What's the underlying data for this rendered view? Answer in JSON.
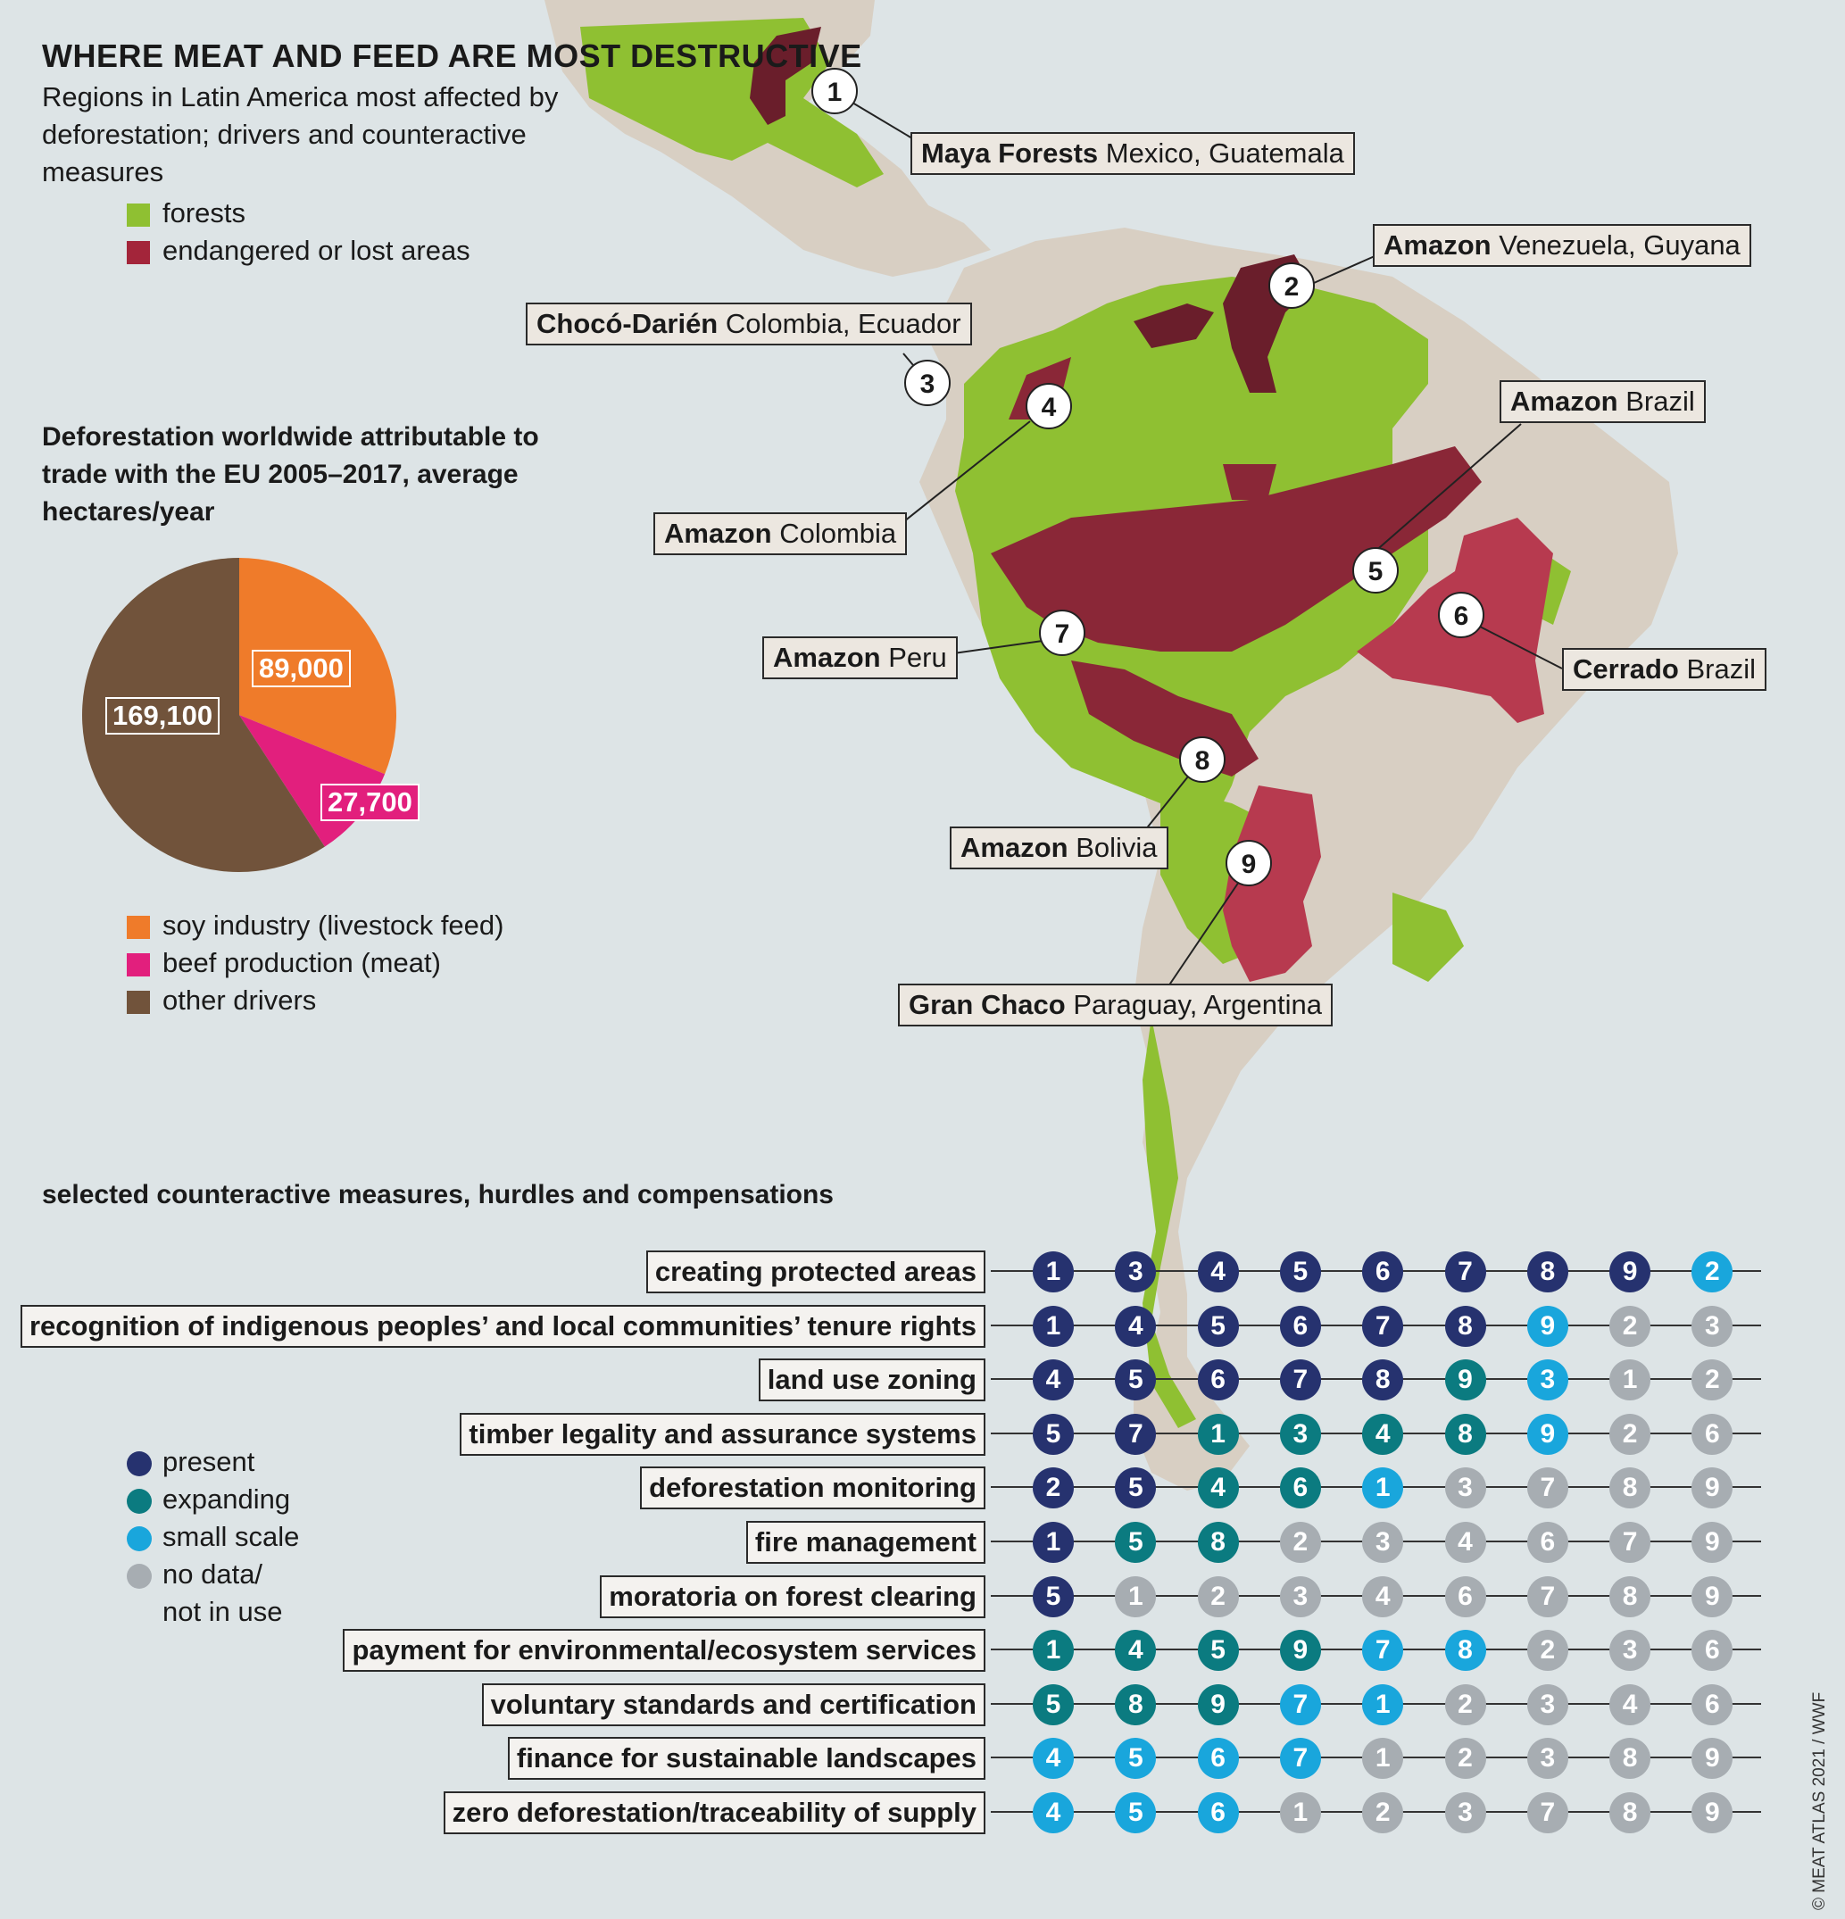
{
  "title": "WHERE MEAT AND FEED ARE MOST DESTRUCTIVE",
  "subtitle": "Regions in Latin America most affected by deforestation; drivers and counteractive measures",
  "colors": {
    "ocean": "#dde4e6",
    "land": "#d8cfc3",
    "forest": "#8fc032",
    "endangered": "#b73a4f",
    "dark_endangered": "#6a1e2b",
    "soy": "#ef7b2a",
    "beef": "#e21f7d",
    "other": "#71533b",
    "present": "#26326f",
    "expanding": "#0b7b80",
    "small_scale": "#19a6dc",
    "no_data": "#a7adb2"
  },
  "map_legend": [
    {
      "label": "forests",
      "color": "#8fc032"
    },
    {
      "label": "endangered or lost areas",
      "color": "#a3253a"
    }
  ],
  "pie": {
    "title": "Deforestation worldwide attributable to trade with the EU 2005–2017, average hectares/year",
    "legend": [
      {
        "label": "soy industry (livestock feed)",
        "color": "#ef7b2a"
      },
      {
        "label": "beef production (meat)",
        "color": "#e21f7d"
      },
      {
        "label": "other drivers",
        "color": "#71533b"
      }
    ]
  },
  "chart_data": {
    "type": "pie",
    "title": "Deforestation worldwide attributable to trade with the EU 2005–2017, average hectares/year",
    "slices": [
      {
        "label": "soy industry (livestock feed)",
        "value": 89000,
        "display": "89,000",
        "color": "#ef7b2a"
      },
      {
        "label": "beef production (meat)",
        "value": 27700,
        "display": "27,700",
        "color": "#e21f7d"
      },
      {
        "label": "other drivers",
        "value": 169100,
        "display": "169,100",
        "color": "#71533b"
      }
    ]
  },
  "regions": [
    {
      "num": "1",
      "name": "Maya Forests",
      "countries": "Mexico, Guatemala"
    },
    {
      "num": "2",
      "name": "Amazon",
      "countries": "Venezuela, Guyana"
    },
    {
      "num": "3",
      "name": "Chocó-Darién",
      "countries": "Colombia, Ecuador"
    },
    {
      "num": "4",
      "name": "Amazon",
      "countries": "Colombia"
    },
    {
      "num": "5",
      "name": "Amazon",
      "countries": "Brazil"
    },
    {
      "num": "6",
      "name": "Cerrado",
      "countries": "Brazil"
    },
    {
      "num": "7",
      "name": "Amazon",
      "countries": "Peru"
    },
    {
      "num": "8",
      "name": "Amazon",
      "countries": "Bolivia"
    },
    {
      "num": "9",
      "name": "Gran Chaco",
      "countries": "Paraguay, Argentina"
    }
  ],
  "measures_title": "selected counteractive measures, hurdles and compensations",
  "status_legend": [
    {
      "key": "present",
      "label": "present",
      "color": "#26326f"
    },
    {
      "key": "expanding",
      "label": "expanding",
      "color": "#0b7b80"
    },
    {
      "key": "small",
      "label": "small scale",
      "color": "#19a6dc"
    },
    {
      "key": "none",
      "label": "no data/ not in use",
      "line1": "no data/",
      "line2": "not in use",
      "color": "#a7adb2"
    }
  ],
  "measures": [
    {
      "label": "creating protected areas",
      "items": [
        [
          "1",
          "present"
        ],
        [
          "3",
          "present"
        ],
        [
          "4",
          "present"
        ],
        [
          "5",
          "present"
        ],
        [
          "6",
          "present"
        ],
        [
          "7",
          "present"
        ],
        [
          "8",
          "present"
        ],
        [
          "9",
          "present"
        ],
        [
          "2",
          "small"
        ]
      ]
    },
    {
      "label": "recognition of indigenous peoples’ and local communities’ tenure rights",
      "items": [
        [
          "1",
          "present"
        ],
        [
          "4",
          "present"
        ],
        [
          "5",
          "present"
        ],
        [
          "6",
          "present"
        ],
        [
          "7",
          "present"
        ],
        [
          "8",
          "present"
        ],
        [
          "9",
          "small"
        ],
        [
          "2",
          "none"
        ],
        [
          "3",
          "none"
        ]
      ]
    },
    {
      "label": "land use zoning",
      "items": [
        [
          "4",
          "present"
        ],
        [
          "5",
          "present"
        ],
        [
          "6",
          "present"
        ],
        [
          "7",
          "present"
        ],
        [
          "8",
          "present"
        ],
        [
          "9",
          "expanding"
        ],
        [
          "3",
          "small"
        ],
        [
          "1",
          "none"
        ],
        [
          "2",
          "none"
        ]
      ]
    },
    {
      "label": "timber legality and assurance systems",
      "items": [
        [
          "5",
          "present"
        ],
        [
          "7",
          "present"
        ],
        [
          "1",
          "expanding"
        ],
        [
          "3",
          "expanding"
        ],
        [
          "4",
          "expanding"
        ],
        [
          "8",
          "expanding"
        ],
        [
          "9",
          "small"
        ],
        [
          "2",
          "none"
        ],
        [
          "6",
          "none"
        ]
      ]
    },
    {
      "label": "deforestation monitoring",
      "items": [
        [
          "2",
          "present"
        ],
        [
          "5",
          "present"
        ],
        [
          "4",
          "expanding"
        ],
        [
          "6",
          "expanding"
        ],
        [
          "1",
          "small"
        ],
        [
          "3",
          "none"
        ],
        [
          "7",
          "none"
        ],
        [
          "8",
          "none"
        ],
        [
          "9",
          "none"
        ]
      ]
    },
    {
      "label": "fire management",
      "items": [
        [
          "1",
          "present"
        ],
        [
          "5",
          "expanding"
        ],
        [
          "8",
          "expanding"
        ],
        [
          "2",
          "none"
        ],
        [
          "3",
          "none"
        ],
        [
          "4",
          "none"
        ],
        [
          "6",
          "none"
        ],
        [
          "7",
          "none"
        ],
        [
          "9",
          "none"
        ]
      ]
    },
    {
      "label": "moratoria on forest clearing",
      "items": [
        [
          "5",
          "present"
        ],
        [
          "1",
          "none"
        ],
        [
          "2",
          "none"
        ],
        [
          "3",
          "none"
        ],
        [
          "4",
          "none"
        ],
        [
          "6",
          "none"
        ],
        [
          "7",
          "none"
        ],
        [
          "8",
          "none"
        ],
        [
          "9",
          "none"
        ]
      ]
    },
    {
      "label": "payment for environmental/ecosystem services",
      "items": [
        [
          "1",
          "expanding"
        ],
        [
          "4",
          "expanding"
        ],
        [
          "5",
          "expanding"
        ],
        [
          "9",
          "expanding"
        ],
        [
          "7",
          "small"
        ],
        [
          "8",
          "small"
        ],
        [
          "2",
          "none"
        ],
        [
          "3",
          "none"
        ],
        [
          "6",
          "none"
        ]
      ]
    },
    {
      "label": "voluntary standards and certification",
      "items": [
        [
          "5",
          "expanding"
        ],
        [
          "8",
          "expanding"
        ],
        [
          "9",
          "expanding"
        ],
        [
          "7",
          "small"
        ],
        [
          "1",
          "small"
        ],
        [
          "2",
          "none"
        ],
        [
          "3",
          "none"
        ],
        [
          "4",
          "none"
        ],
        [
          "6",
          "none"
        ]
      ]
    },
    {
      "label": "finance for sustainable landscapes",
      "items": [
        [
          "4",
          "small"
        ],
        [
          "5",
          "small"
        ],
        [
          "6",
          "small"
        ],
        [
          "7",
          "small"
        ],
        [
          "1",
          "none"
        ],
        [
          "2",
          "none"
        ],
        [
          "3",
          "none"
        ],
        [
          "8",
          "none"
        ],
        [
          "9",
          "none"
        ]
      ]
    },
    {
      "label": "zero deforestation/traceability of supply",
      "items": [
        [
          "4",
          "small"
        ],
        [
          "5",
          "small"
        ],
        [
          "6",
          "small"
        ],
        [
          "1",
          "none"
        ],
        [
          "2",
          "none"
        ],
        [
          "3",
          "none"
        ],
        [
          "7",
          "none"
        ],
        [
          "8",
          "none"
        ],
        [
          "9",
          "none"
        ]
      ]
    }
  ],
  "credit": "© MEAT ATLAS 2021 / WWF"
}
